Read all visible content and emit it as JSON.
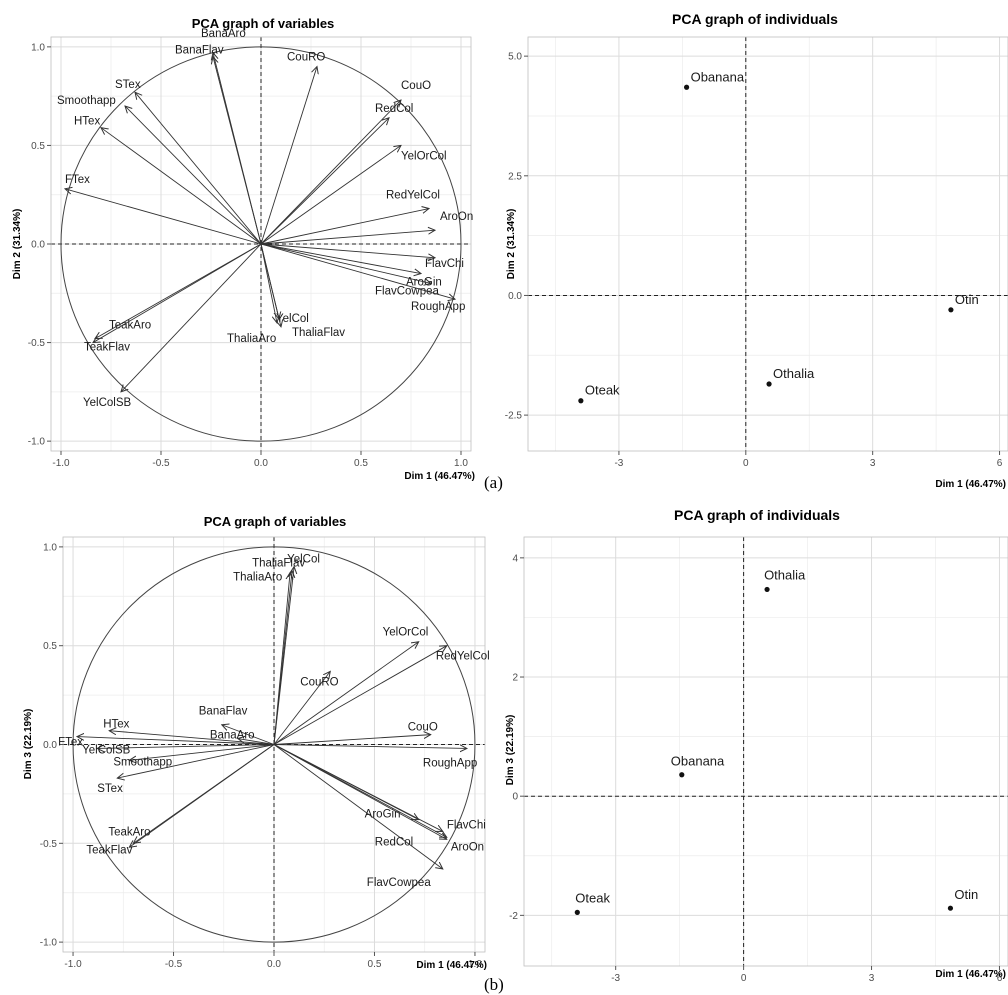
{
  "panel_labels": [
    "(a)",
    "(b)"
  ],
  "chart_data": [
    {
      "type": "scatter",
      "subtype": "pca-variable-correlation-circle",
      "title": "PCA graph of variables",
      "xlabel": "Dim 1 (46.47%)",
      "ylabel": "Dim 2 (31.34%)",
      "xlim": [
        -1.05,
        1.05
      ],
      "ylim": [
        -1.05,
        1.05
      ],
      "xticks": [
        -1.0,
        -0.5,
        0.0,
        0.5,
        1.0
      ],
      "yticks": [
        -1.0,
        -0.5,
        0.0,
        0.5,
        1.0
      ],
      "xtick_labels": [
        "-1.0",
        "-0.5",
        "0.0",
        "0.5",
        "1.0"
      ],
      "ytick_labels": [
        "-1.0",
        "-0.5",
        "0.0",
        "0.5",
        "1.0"
      ],
      "grid": true,
      "unit_circle": true,
      "variables": [
        {
          "name": "BanaAro",
          "x": -0.24,
          "y": 0.97
        },
        {
          "name": "BanaFlav",
          "x": -0.24,
          "y": 0.95
        },
        {
          "name": "CouRO",
          "x": 0.28,
          "y": 0.9
        },
        {
          "name": "STex",
          "x": -0.63,
          "y": 0.77
        },
        {
          "name": "Smoothapp",
          "x": -0.68,
          "y": 0.7
        },
        {
          "name": "HTex",
          "x": -0.8,
          "y": 0.59
        },
        {
          "name": "CouO",
          "x": 0.7,
          "y": 0.73
        },
        {
          "name": "RedCol",
          "x": 0.64,
          "y": 0.64
        },
        {
          "name": "YelOrCol",
          "x": 0.7,
          "y": 0.5
        },
        {
          "name": "FTex",
          "x": -0.98,
          "y": 0.28
        },
        {
          "name": "RedYelCol",
          "x": 0.84,
          "y": 0.18
        },
        {
          "name": "AroOn",
          "x": 0.87,
          "y": 0.07
        },
        {
          "name": "FlavChi",
          "x": 0.87,
          "y": -0.07
        },
        {
          "name": "AroGin",
          "x": 0.8,
          "y": -0.15
        },
        {
          "name": "FlavCowpea",
          "x": 0.85,
          "y": -0.2
        },
        {
          "name": "RoughApp",
          "x": 0.97,
          "y": -0.28
        },
        {
          "name": "YelCol",
          "x": 0.09,
          "y": -0.38
        },
        {
          "name": "ThaliaAro",
          "x": 0.08,
          "y": -0.4
        },
        {
          "name": "ThaliaFlav",
          "x": 0.1,
          "y": -0.42
        },
        {
          "name": "TeakAro",
          "x": -0.83,
          "y": -0.48
        },
        {
          "name": "TeakFlav",
          "x": -0.84,
          "y": -0.5
        },
        {
          "name": "YelColSB",
          "x": -0.7,
          "y": -0.75
        }
      ]
    },
    {
      "type": "scatter",
      "subtype": "pca-individuals",
      "title": "PCA graph of individuals",
      "xlabel": "Dim 1 (46.47%)",
      "ylabel": "Dim 2 (31.34%)",
      "xlim": [
        -5.15,
        6.2
      ],
      "ylim": [
        -3.25,
        5.4
      ],
      "xticks": [
        -3,
        0,
        3,
        6
      ],
      "yticks": [
        -2.5,
        0.0,
        2.5,
        5.0
      ],
      "xtick_labels": [
        "-3",
        "0",
        "3",
        "6"
      ],
      "ytick_labels": [
        "-2.5",
        "0.0",
        "2.5",
        "5.0"
      ],
      "grid": true,
      "points": [
        {
          "name": "Obanana",
          "x": -1.4,
          "y": 4.35
        },
        {
          "name": "Otin",
          "x": 4.85,
          "y": -0.3
        },
        {
          "name": "Othalia",
          "x": 0.55,
          "y": -1.85
        },
        {
          "name": "Oteak",
          "x": -3.9,
          "y": -2.2
        }
      ]
    },
    {
      "type": "scatter",
      "subtype": "pca-variable-correlation-circle",
      "title": "PCA graph of variables",
      "xlabel": "Dim 1 (46.47%)",
      "ylabel": "Dim 3 (22.19%)",
      "xlim": [
        -1.05,
        1.05
      ],
      "ylim": [
        -1.05,
        1.05
      ],
      "xticks": [
        -1.0,
        -0.5,
        0.0,
        0.5,
        1.0
      ],
      "yticks": [
        -1.0,
        -0.5,
        0.0,
        0.5,
        1.0
      ],
      "xtick_labels": [
        "-1.0",
        "-0.5",
        "0.0",
        "0.5",
        "1.0"
      ],
      "ytick_labels": [
        "-1.0",
        "-0.5",
        "0.0",
        "0.5",
        "1.0"
      ],
      "grid": true,
      "unit_circle": true,
      "variables": [
        {
          "name": "YelCol",
          "x": 0.1,
          "y": 0.9
        },
        {
          "name": "ThaliaFlav",
          "x": 0.09,
          "y": 0.88
        },
        {
          "name": "ThaliaAro",
          "x": 0.08,
          "y": 0.87
        },
        {
          "name": "YelOrCol",
          "x": 0.72,
          "y": 0.52
        },
        {
          "name": "RedYelCol",
          "x": 0.86,
          "y": 0.5
        },
        {
          "name": "CouRO",
          "x": 0.28,
          "y": 0.37
        },
        {
          "name": "CouO",
          "x": 0.78,
          "y": 0.05
        },
        {
          "name": "RoughApp",
          "x": 0.96,
          "y": -0.02
        },
        {
          "name": "HTex",
          "x": -0.82,
          "y": 0.07
        },
        {
          "name": "BanaFlav",
          "x": -0.26,
          "y": 0.1
        },
        {
          "name": "BanaAro",
          "x": -0.18,
          "y": 0.03
        },
        {
          "name": "FTex",
          "x": -0.98,
          "y": 0.04
        },
        {
          "name": "YelColSB",
          "x": -0.88,
          "y": -0.02
        },
        {
          "name": "Smoothapp",
          "x": -0.72,
          "y": -0.08
        },
        {
          "name": "STex",
          "x": -0.78,
          "y": -0.17
        },
        {
          "name": "AroGin",
          "x": 0.72,
          "y": -0.38
        },
        {
          "name": "RedCol",
          "x": 0.84,
          "y": -0.44
        },
        {
          "name": "FlavChi",
          "x": 0.86,
          "y": -0.47
        },
        {
          "name": "AroOn",
          "x": 0.86,
          "y": -0.48
        },
        {
          "name": "FlavCowpea",
          "x": 0.84,
          "y": -0.63
        },
        {
          "name": "TeakAro",
          "x": -0.7,
          "y": -0.5
        },
        {
          "name": "TeakFlav",
          "x": -0.72,
          "y": -0.52
        }
      ]
    },
    {
      "type": "scatter",
      "subtype": "pca-individuals",
      "title": "PCA graph of individuals",
      "xlabel": "Dim 1 (46.47%)",
      "ylabel": "Dim 3 (22.19%)",
      "xlim": [
        -5.15,
        6.2
      ],
      "ylim": [
        -2.85,
        4.35
      ],
      "xticks": [
        -3,
        0,
        3,
        6
      ],
      "yticks": [
        -2,
        0,
        2,
        4
      ],
      "xtick_labels": [
        "-3",
        "0",
        "3",
        "6"
      ],
      "ytick_labels": [
        "-2",
        "0",
        "2",
        "4"
      ],
      "grid": true,
      "points": [
        {
          "name": "Othalia",
          "x": 0.55,
          "y": 3.47
        },
        {
          "name": "Obanana",
          "x": -1.45,
          "y": 0.36
        },
        {
          "name": "Oteak",
          "x": -3.9,
          "y": -1.95
        },
        {
          "name": "Otin",
          "x": 4.85,
          "y": -1.88
        }
      ]
    }
  ]
}
